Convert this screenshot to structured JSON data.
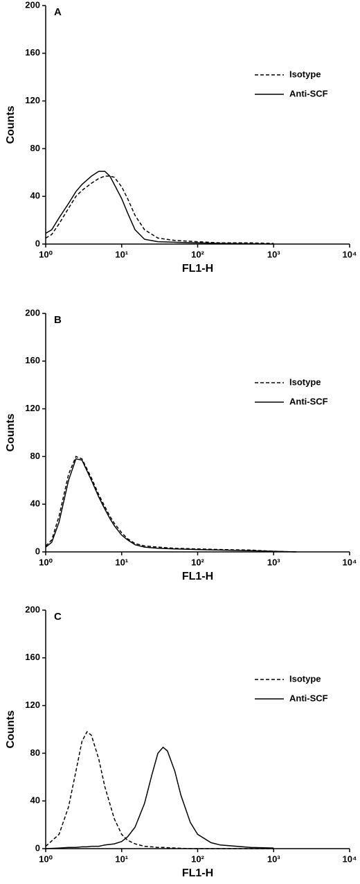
{
  "chart_data": [
    {
      "type": "line",
      "panel": "A",
      "xlabel": "FL1-H",
      "ylabel": "Counts",
      "xscale": "log",
      "xlim": [
        1,
        10000
      ],
      "xticks": [
        {
          "value": 1,
          "label": "10⁰"
        },
        {
          "value": 10,
          "label": "10¹"
        },
        {
          "value": 100,
          "label": "10²"
        },
        {
          "value": 1000,
          "label": "10³"
        },
        {
          "value": 10000,
          "label": "10⁴"
        }
      ],
      "ylim": [
        0,
        200
      ],
      "yticks": [
        0,
        40,
        80,
        120,
        160,
        200
      ],
      "legend": "upper right",
      "x": [
        1,
        1.2,
        1.5,
        2,
        2.5,
        3,
        4,
        5,
        6,
        7,
        8,
        10,
        12,
        15,
        20,
        30,
        50,
        100,
        200,
        500,
        1000
      ],
      "series": [
        {
          "name": "Isotype",
          "color": "#000000",
          "dash": true,
          "values": [
            5,
            8,
            17,
            30,
            40,
            45,
            51,
            55,
            57,
            57,
            56,
            48,
            38,
            24,
            12,
            5,
            3,
            2,
            1,
            1,
            0.5
          ]
        },
        {
          "name": "Anti-SCF",
          "color": "#000000",
          "dash": false,
          "values": [
            9,
            12,
            22,
            34,
            44,
            50,
            57,
            61,
            61,
            57,
            50,
            38,
            26,
            12,
            4,
            2,
            1.5,
            1,
            0.5,
            0.3,
            0
          ]
        }
      ]
    },
    {
      "type": "line",
      "panel": "B",
      "xlabel": "FL1-H",
      "ylabel": "Counts",
      "xscale": "log",
      "xlim": [
        1,
        10000
      ],
      "xticks": [
        {
          "value": 1,
          "label": "10⁰"
        },
        {
          "value": 10,
          "label": "10¹"
        },
        {
          "value": 100,
          "label": "10²"
        },
        {
          "value": 1000,
          "label": "10³"
        },
        {
          "value": 10000,
          "label": "10⁴"
        }
      ],
      "ylim": [
        0,
        200
      ],
      "yticks": [
        0,
        40,
        80,
        120,
        160,
        200
      ],
      "legend": "upper right",
      "x": [
        1,
        1.2,
        1.5,
        2,
        2.5,
        3,
        4,
        5,
        6,
        7,
        8,
        10,
        12,
        15,
        20,
        30,
        50,
        100,
        200,
        500,
        1000,
        2000
      ],
      "series": [
        {
          "name": "Isotype",
          "color": "#000000",
          "dash": true,
          "values": [
            5,
            10,
            30,
            65,
            80,
            78,
            62,
            48,
            38,
            30,
            24,
            16,
            11,
            7,
            5,
            4,
            3,
            2.5,
            2,
            1.5,
            0.5,
            0
          ]
        },
        {
          "name": "Anti-SCF",
          "color": "#000000",
          "dash": false,
          "values": [
            4,
            8,
            25,
            60,
            78,
            77,
            60,
            46,
            36,
            28,
            22,
            14,
            10,
            6,
            4,
            3,
            2.5,
            2,
            1.5,
            1,
            0.5,
            0
          ]
        }
      ]
    },
    {
      "type": "line",
      "panel": "C",
      "xlabel": "FL1-H",
      "ylabel": "Counts",
      "xscale": "log",
      "xlim": [
        1,
        10000
      ],
      "xticks": [
        {
          "value": 1,
          "label": "10⁰"
        },
        {
          "value": 10,
          "label": "10¹"
        },
        {
          "value": 100,
          "label": "10²"
        },
        {
          "value": 1000,
          "label": "10³"
        },
        {
          "value": 10000,
          "label": "10⁴"
        }
      ],
      "ylim": [
        0,
        200
      ],
      "yticks": [
        0,
        40,
        80,
        120,
        160,
        200
      ],
      "legend": "upper right",
      "x": [
        1,
        1.5,
        2,
        2.5,
        3,
        3.5,
        4,
        5,
        6,
        8,
        10,
        12,
        15,
        20,
        25,
        30,
        35,
        40,
        50,
        60,
        80,
        100,
        150,
        200,
        500,
        1000
      ],
      "series": [
        {
          "name": "Isotype",
          "color": "#000000",
          "dash": true,
          "values": [
            2,
            12,
            35,
            65,
            90,
            98,
            95,
            75,
            52,
            25,
            12,
            7,
            4,
            2,
            1.5,
            1,
            1,
            0.8,
            0.5,
            0.3,
            0,
            0,
            0,
            0,
            0,
            0
          ]
        },
        {
          "name": "Anti-SCF",
          "color": "#000000",
          "dash": false,
          "values": [
            0,
            0.5,
            1,
            1,
            1.5,
            1.5,
            2,
            2,
            3,
            4,
            6,
            10,
            18,
            38,
            62,
            80,
            85,
            82,
            65,
            45,
            22,
            12,
            5,
            3,
            1,
            0.5
          ]
        }
      ]
    }
  ]
}
